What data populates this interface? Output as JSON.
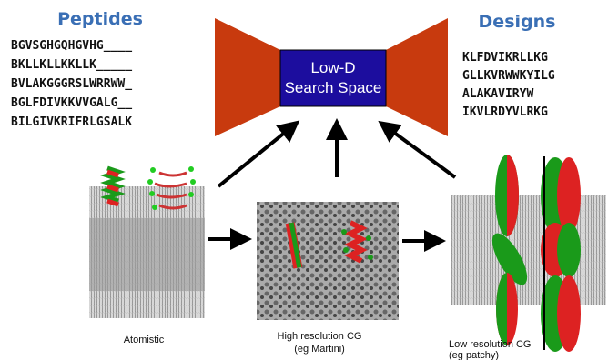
{
  "peptides": {
    "title": "Peptides",
    "sequences": [
      "BGVSGHGQHGVHG____",
      "BKLLKLLKKLLK_____",
      "BVLAKGGGRSLWRRWW_",
      "BGLFDIVKKVVGALG__",
      "BILGIVKRIFRLGSALK"
    ]
  },
  "search_space": {
    "lines": [
      "Low-D",
      "Search Space"
    ]
  },
  "designs": {
    "title": "Designs",
    "sequences": [
      "KLFDVIKRLLKG",
      "GLLKVRWWKYILG",
      "ALAKAVIRYW",
      "IKVLRDYVLRKG"
    ]
  },
  "panels": [
    {
      "caption": [
        "Atomistic"
      ]
    },
    {
      "caption": [
        "High resolution CG",
        "(eg Martini)"
      ]
    },
    {
      "caption": [
        "Low resolution CG",
        "(eg patchy)"
      ]
    }
  ]
}
